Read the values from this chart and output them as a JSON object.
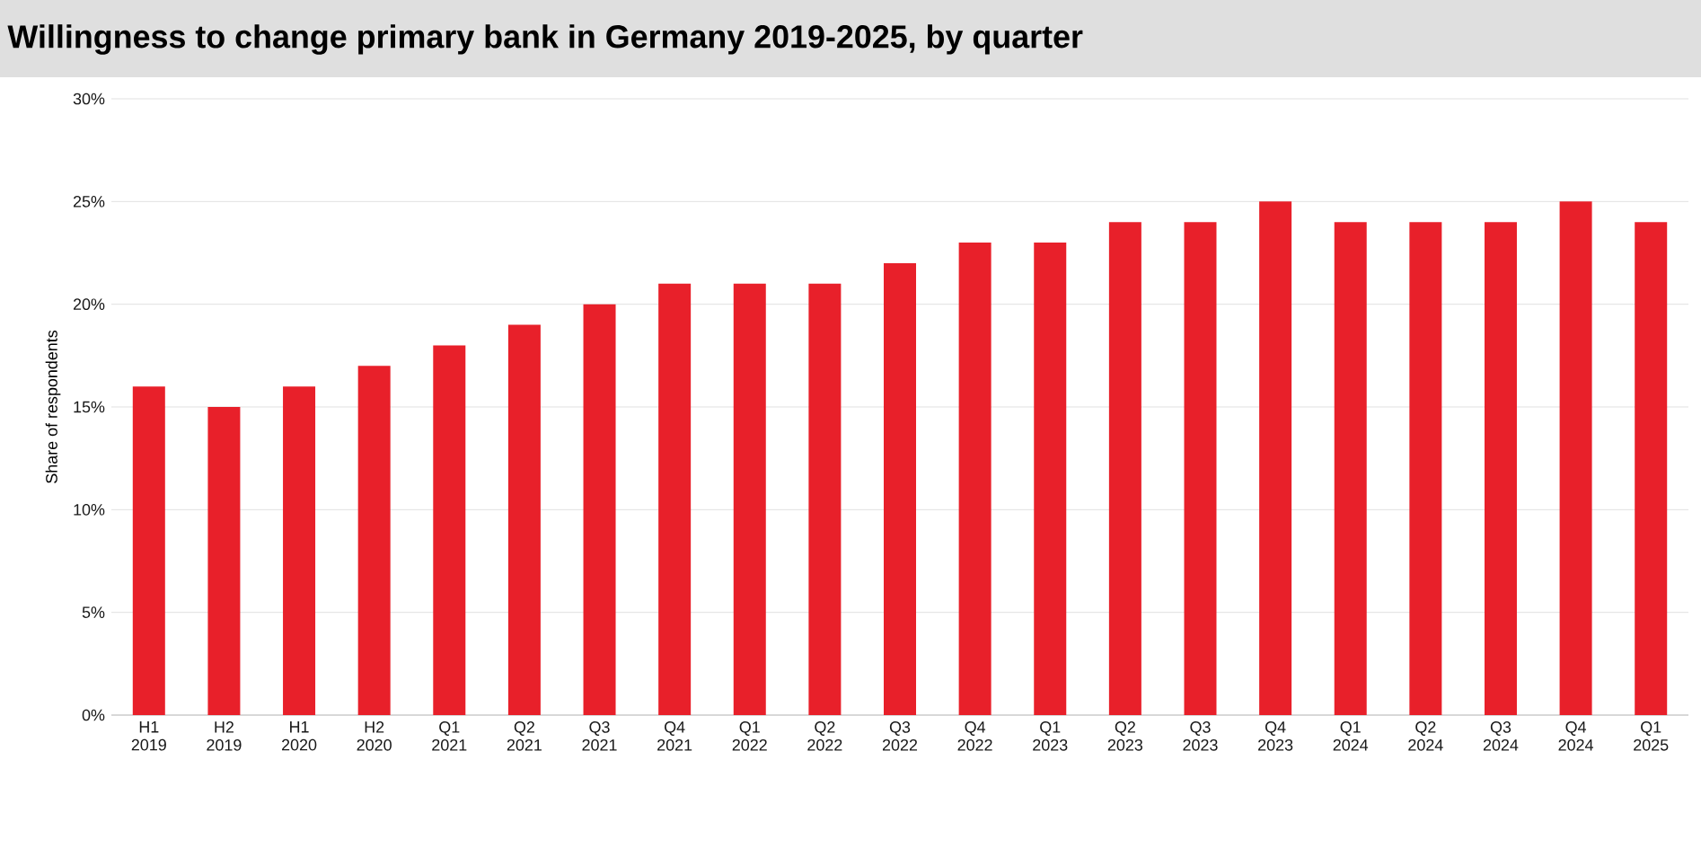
{
  "chart_data": {
    "type": "bar",
    "title": "Willingness to change primary bank in Germany 2019-2025, by quarter",
    "ylabel": "Share of respondents",
    "categories": [
      "H1 2019",
      "H2 2019",
      "H1 2020",
      "H2 2020",
      "Q1 2021",
      "Q2 2021",
      "Q3 2021",
      "Q4 2021",
      "Q1 2022",
      "Q2 2022",
      "Q3 2022",
      "Q4 2022",
      "Q1 2023",
      "Q2 2023",
      "Q3 2023",
      "Q4 2023",
      "Q1 2024",
      "Q2 2024",
      "Q3 2024",
      "Q4 2024",
      "Q1 2025"
    ],
    "values": [
      16,
      15,
      16,
      17,
      18,
      19,
      20,
      21,
      21,
      21,
      22,
      23,
      23,
      24,
      24,
      25,
      24,
      24,
      24,
      25,
      24
    ],
    "color": "#e8202a",
    "ylim": [
      0,
      30
    ],
    "yticks": [
      {
        "value": 0,
        "label": "0%"
      },
      {
        "value": 5,
        "label": "5%"
      },
      {
        "value": 10,
        "label": "10%"
      },
      {
        "value": 15,
        "label": "15%"
      },
      {
        "value": 20,
        "label": "20%"
      },
      {
        "value": 25,
        "label": "25%"
      },
      {
        "value": 30,
        "label": "30%"
      }
    ],
    "grid": "y"
  }
}
